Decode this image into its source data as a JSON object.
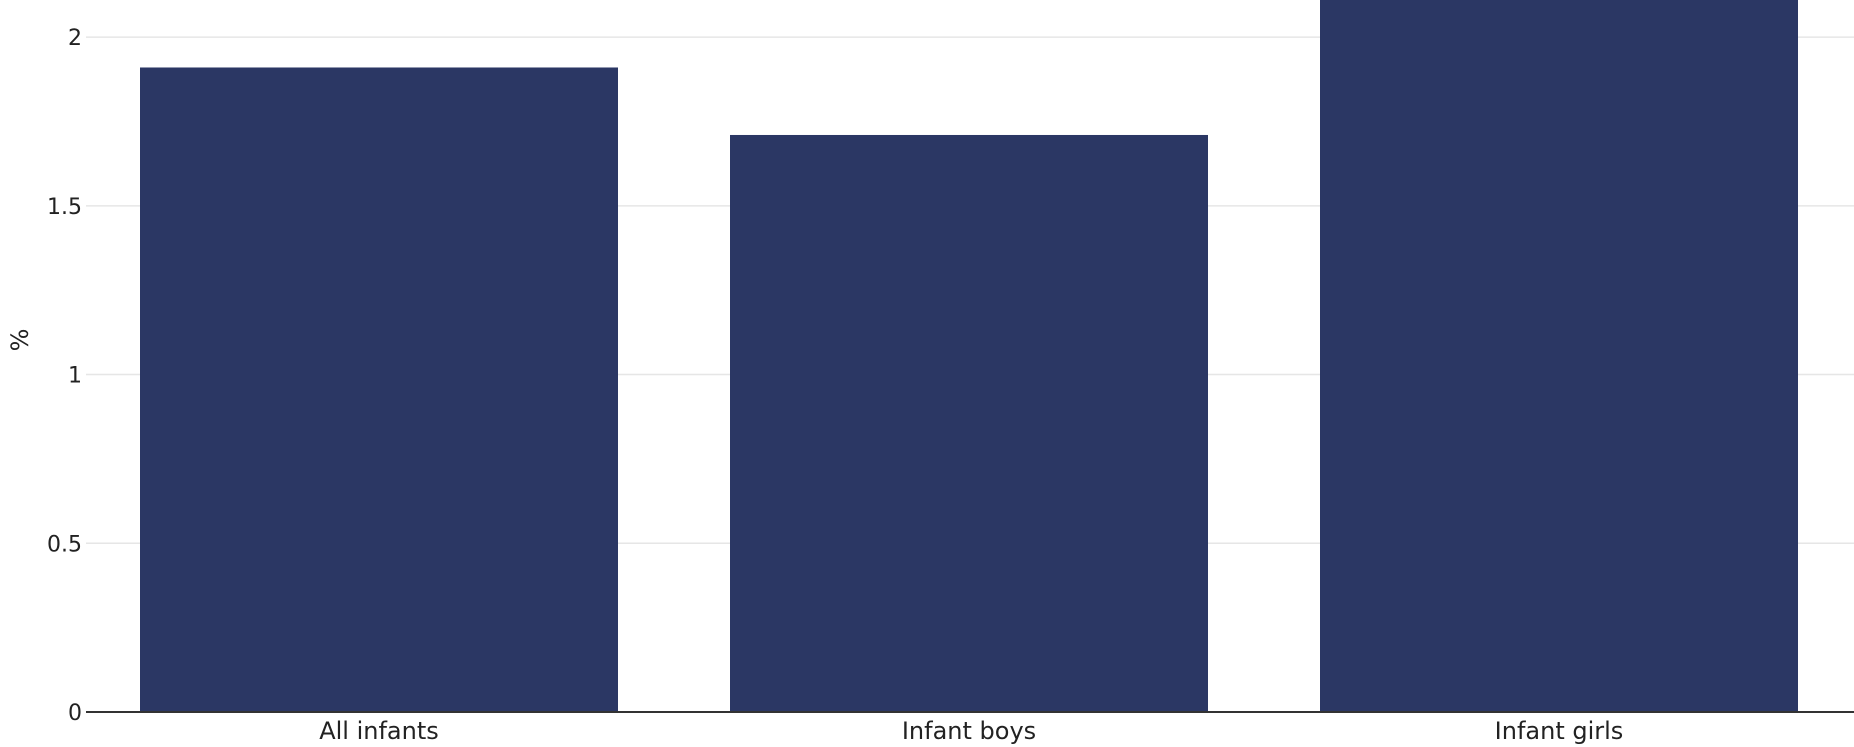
{
  "chart_data": {
    "type": "bar",
    "title": "",
    "xlabel": "",
    "ylabel": "%",
    "categories": [
      "All infants",
      "Infant boys",
      "Infant girls"
    ],
    "values": [
      1.91,
      1.71,
      2.11
    ],
    "ylim": [
      0,
      2.11
    ],
    "yticks": [
      0,
      0.5,
      1,
      1.5,
      2
    ],
    "ytick_labels": [
      "0",
      "0.5",
      "1",
      "1.5",
      "2"
    ],
    "grid": true,
    "legend": "none",
    "colors": {
      "bar": "#2b3764"
    }
  }
}
